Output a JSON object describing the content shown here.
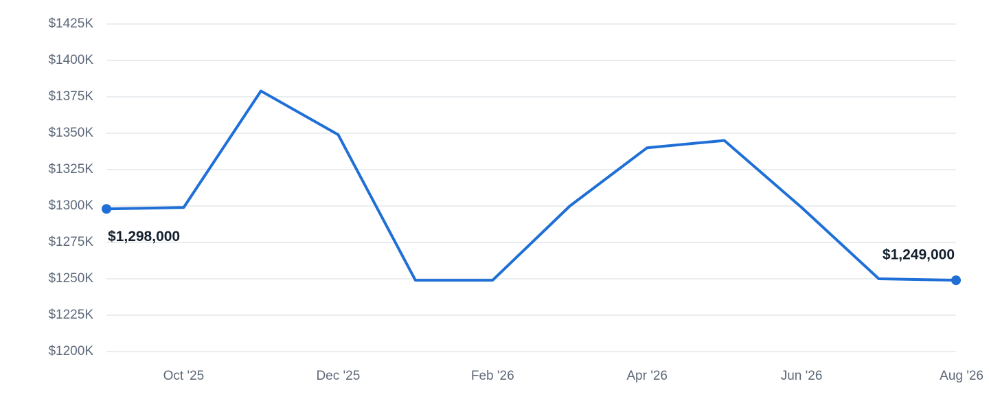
{
  "chart_data": {
    "type": "line",
    "categories": [
      null,
      "Oct '25",
      null,
      "Dec '25",
      null,
      "Feb '26",
      null,
      "Apr '26",
      null,
      "Jun '26",
      null,
      "Aug '26"
    ],
    "series": [
      {
        "color": "#1f6fd6",
        "values": [
          1298000,
          1299000,
          1379000,
          1349000,
          1249000,
          1249000,
          1300000,
          1340000,
          1345000,
          1299000,
          1250000,
          1249000
        ],
        "value_labels": [
          "$1,298,000",
          null,
          null,
          null,
          null,
          null,
          null,
          null,
          null,
          null,
          null,
          "$1,249,000"
        ]
      }
    ],
    "ylim": [
      1200000,
      1425000
    ],
    "yticks": [
      {
        "value": 1200000,
        "label": "$1200K"
      },
      {
        "value": 1225000,
        "label": "$1225K"
      },
      {
        "value": 1250000,
        "label": "$1250K"
      },
      {
        "value": 1275000,
        "label": "$1275K"
      },
      {
        "value": 1300000,
        "label": "$1300K"
      },
      {
        "value": 1325000,
        "label": "$1325K"
      },
      {
        "value": 1350000,
        "label": "$1350K"
      },
      {
        "value": 1375000,
        "label": "$1375K"
      },
      {
        "value": 1400000,
        "label": "$1400K"
      },
      {
        "value": 1425000,
        "label": "$1425K"
      }
    ],
    "grid": true
  }
}
